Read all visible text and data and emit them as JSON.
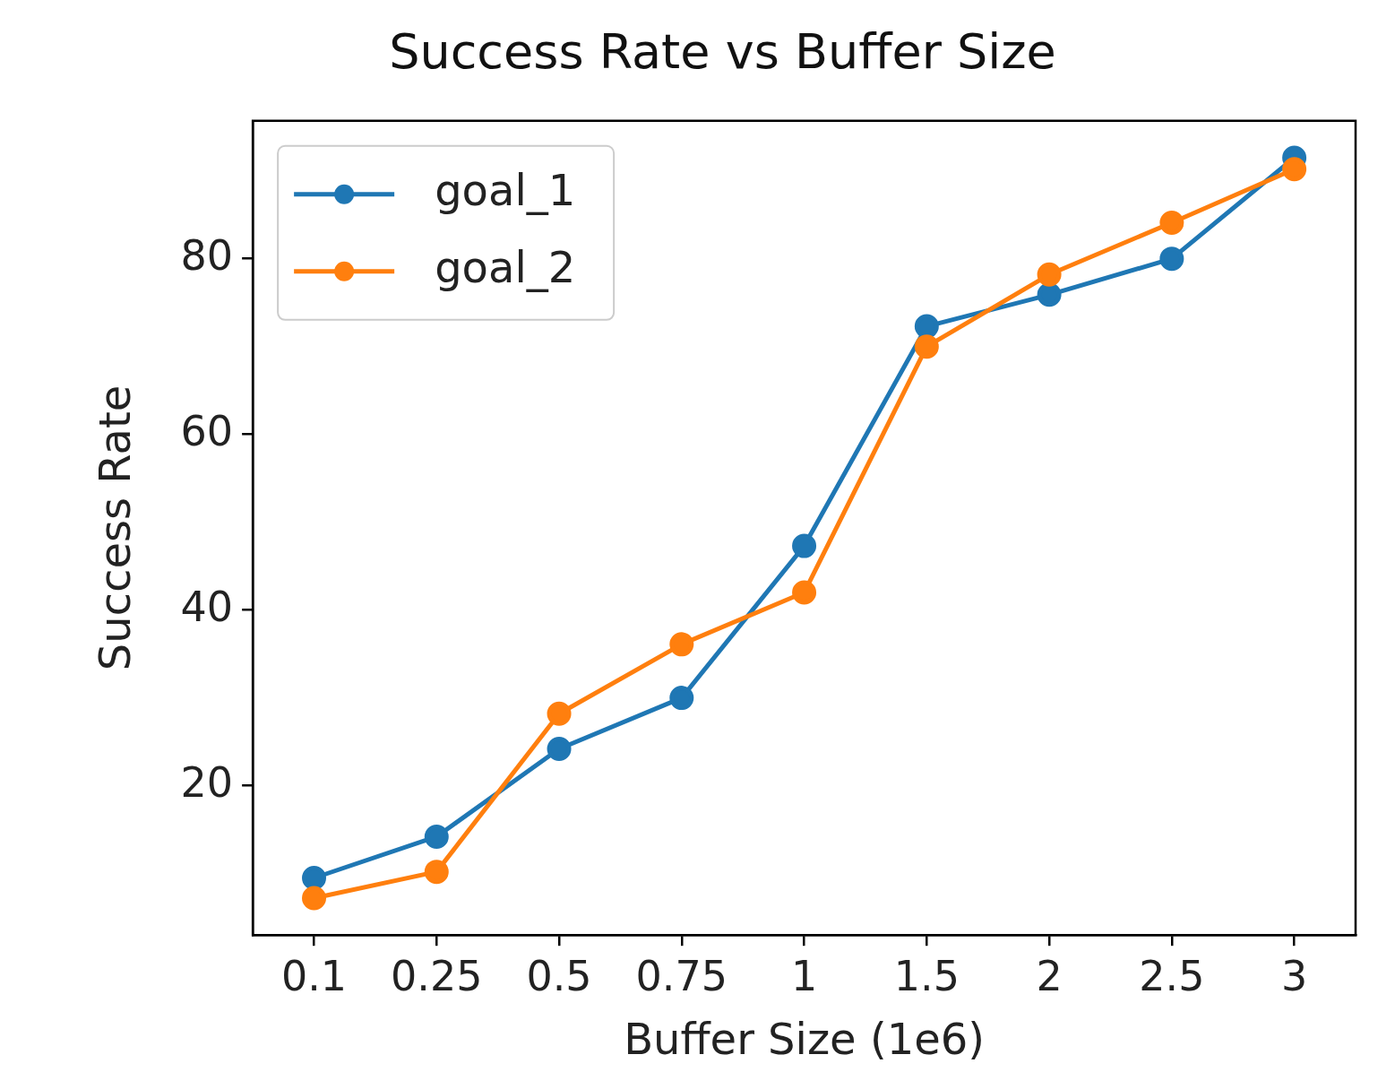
{
  "chart_data": {
    "type": "line",
    "title": "Success Rate vs Buffer Size",
    "xlabel": "Buffer Size (1e6)",
    "ylabel": "Success Rate",
    "categories": [
      "0.1",
      "0.25",
      "0.5",
      "0.75",
      "1",
      "1.5",
      "2",
      "2.5",
      "3"
    ],
    "series": [
      {
        "name": "goal_1",
        "color": "#1f77b4",
        "values": [
          9.5,
          14.2,
          24.2,
          30,
          47.3,
          72.3,
          75.9,
          80,
          91.5
        ]
      },
      {
        "name": "goal_2",
        "color": "#ff7f0e",
        "values": [
          7.2,
          10.2,
          28.2,
          36.1,
          42,
          70,
          78.2,
          84.1,
          90.2
        ]
      }
    ],
    "ylim": [
      3,
      95.7
    ],
    "yticks": [
      20,
      40,
      60,
      80
    ],
    "grid": false,
    "legend": "top left",
    "marker": "circle",
    "line_style": "solid"
  }
}
